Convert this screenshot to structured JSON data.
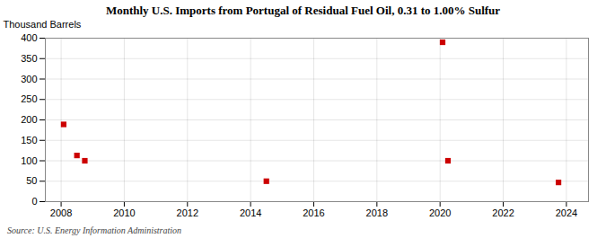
{
  "chart_data": {
    "type": "scatter",
    "title": "Monthly U.S. Imports from Portugal of Residual Fuel Oil, 0.31 to 1.00% Sulfur",
    "ylabel": "Thousand Barrels",
    "source": "Source: U.S. Energy Information Administration",
    "x": [
      2008.08,
      2008.5,
      2008.75,
      2014.5,
      2020.08,
      2020.25,
      2023.75
    ],
    "values": [
      189,
      113,
      100,
      50,
      390,
      100,
      47
    ],
    "color": "#cc0000",
    "marker": "square",
    "xlim": [
      2007.5,
      2024.7
    ],
    "ylim": [
      0,
      400
    ],
    "xticks": [
      2008,
      2010,
      2012,
      2014,
      2016,
      2018,
      2020,
      2022,
      2024
    ],
    "yticks": [
      0,
      50,
      100,
      150,
      200,
      250,
      300,
      350,
      400
    ],
    "grid": true
  }
}
